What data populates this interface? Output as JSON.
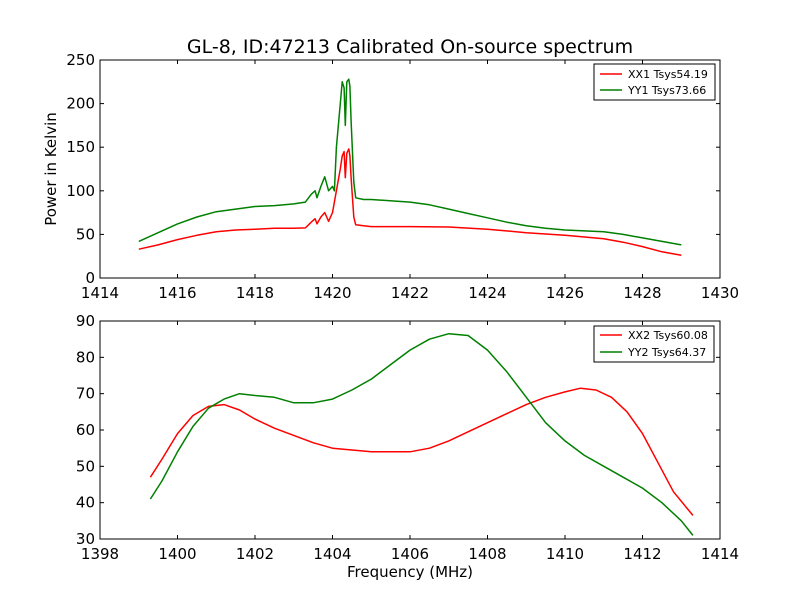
{
  "figure": {
    "title": "GL-8, ID:47213 Calibrated On-source spectrum",
    "xlabel": "Frequency (MHz)"
  },
  "chart_data": [
    {
      "type": "line",
      "title": "GL-8, ID:47213 Calibrated On-source spectrum",
      "ylabel": "Power in Kelvin",
      "xlim": [
        1414,
        1430
      ],
      "ylim": [
        0,
        250
      ],
      "xticks": [
        1414,
        1416,
        1418,
        1420,
        1422,
        1424,
        1426,
        1428,
        1430
      ],
      "yticks": [
        0,
        50,
        100,
        150,
        200,
        250
      ],
      "grid": false,
      "legend": "top-right",
      "series": [
        {
          "name": "XX1 Tsys54.19",
          "color": "#ff0000",
          "points": [
            [
              1415,
              33
            ],
            [
              1415.5,
              38
            ],
            [
              1416,
              44
            ],
            [
              1416.5,
              49
            ],
            [
              1417,
              53
            ],
            [
              1417.5,
              55
            ],
            [
              1418,
              56
            ],
            [
              1418.5,
              57
            ],
            [
              1419,
              57
            ],
            [
              1419.3,
              57.5
            ],
            [
              1419.45,
              64
            ],
            [
              1419.55,
              68
            ],
            [
              1419.6,
              62
            ],
            [
              1419.7,
              70
            ],
            [
              1419.8,
              75
            ],
            [
              1419.85,
              70
            ],
            [
              1419.9,
              65
            ],
            [
              1420.0,
              75
            ],
            [
              1420.1,
              100
            ],
            [
              1420.2,
              125
            ],
            [
              1420.25,
              140
            ],
            [
              1420.3,
              145
            ],
            [
              1420.33,
              115
            ],
            [
              1420.37,
              143
            ],
            [
              1420.42,
              148
            ],
            [
              1420.45,
              140
            ],
            [
              1420.48,
              115
            ],
            [
              1420.55,
              70
            ],
            [
              1420.6,
              61
            ],
            [
              1420.8,
              60
            ],
            [
              1421,
              59
            ],
            [
              1422,
              59
            ],
            [
              1423,
              58.5
            ],
            [
              1424,
              56
            ],
            [
              1425,
              52
            ],
            [
              1426,
              49
            ],
            [
              1427,
              45
            ],
            [
              1427.5,
              41
            ],
            [
              1428,
              36
            ],
            [
              1428.5,
              30
            ],
            [
              1429,
              26
            ]
          ]
        },
        {
          "name": "YY1 Tsys73.66",
          "color": "#008000",
          "points": [
            [
              1415,
              42
            ],
            [
              1415.5,
              52
            ],
            [
              1416,
              62
            ],
            [
              1416.5,
              70
            ],
            [
              1417,
              76
            ],
            [
              1417.5,
              79
            ],
            [
              1418,
              82
            ],
            [
              1418.5,
              83
            ],
            [
              1419,
              85
            ],
            [
              1419.3,
              87
            ],
            [
              1419.45,
              96
            ],
            [
              1419.55,
              100
            ],
            [
              1419.6,
              92
            ],
            [
              1419.7,
              105
            ],
            [
              1419.8,
              116
            ],
            [
              1419.85,
              108
            ],
            [
              1419.9,
              100
            ],
            [
              1420.0,
              105
            ],
            [
              1420.05,
              100
            ],
            [
              1420.1,
              150
            ],
            [
              1420.2,
              200
            ],
            [
              1420.25,
              225
            ],
            [
              1420.3,
              218
            ],
            [
              1420.33,
              175
            ],
            [
              1420.37,
              225
            ],
            [
              1420.42,
              228
            ],
            [
              1420.45,
              220
            ],
            [
              1420.48,
              180
            ],
            [
              1420.55,
              110
            ],
            [
              1420.6,
              92
            ],
            [
              1420.8,
              90
            ],
            [
              1421,
              90
            ],
            [
              1422,
              87
            ],
            [
              1422.5,
              84
            ],
            [
              1423,
              79
            ],
            [
              1423.5,
              74
            ],
            [
              1424,
              69
            ],
            [
              1424.5,
              64
            ],
            [
              1425,
              60
            ],
            [
              1425.5,
              57
            ],
            [
              1426,
              55
            ],
            [
              1427,
              53
            ],
            [
              1427.5,
              50
            ],
            [
              1428,
              46
            ],
            [
              1428.5,
              42
            ],
            [
              1429,
              38
            ]
          ]
        }
      ]
    },
    {
      "type": "line",
      "title": "",
      "ylabel": "",
      "xlabel": "Frequency (MHz)",
      "xlim": [
        1398,
        1414
      ],
      "ylim": [
        30,
        90
      ],
      "xticks": [
        1398,
        1400,
        1402,
        1404,
        1406,
        1408,
        1410,
        1412,
        1414
      ],
      "yticks": [
        30,
        40,
        50,
        60,
        70,
        80,
        90
      ],
      "grid": false,
      "legend": "top-right",
      "series": [
        {
          "name": "XX2 Tsys60.08",
          "color": "#ff0000",
          "points": [
            [
              1399.3,
              47
            ],
            [
              1399.6,
              52
            ],
            [
              1400,
              59
            ],
            [
              1400.4,
              64
            ],
            [
              1400.8,
              66.5
            ],
            [
              1401.2,
              67
            ],
            [
              1401.6,
              65.5
            ],
            [
              1402,
              63
            ],
            [
              1402.5,
              60.5
            ],
            [
              1403,
              58.5
            ],
            [
              1403.5,
              56.5
            ],
            [
              1404,
              55
            ],
            [
              1404.5,
              54.5
            ],
            [
              1405,
              54
            ],
            [
              1405.5,
              54
            ],
            [
              1406,
              54
            ],
            [
              1406.5,
              55
            ],
            [
              1407,
              57
            ],
            [
              1407.5,
              59.5
            ],
            [
              1408,
              62
            ],
            [
              1408.5,
              64.5
            ],
            [
              1409,
              67
            ],
            [
              1409.5,
              69
            ],
            [
              1410,
              70.5
            ],
            [
              1410.4,
              71.5
            ],
            [
              1410.8,
              71
            ],
            [
              1411.2,
              69
            ],
            [
              1411.6,
              65
            ],
            [
              1412,
              59
            ],
            [
              1412.4,
              51
            ],
            [
              1412.8,
              43
            ],
            [
              1413.3,
              36.5
            ]
          ]
        },
        {
          "name": "YY2 Tsys64.37",
          "color": "#008000",
          "points": [
            [
              1399.3,
              41
            ],
            [
              1399.6,
              46
            ],
            [
              1400,
              54
            ],
            [
              1400.4,
              61
            ],
            [
              1400.8,
              66
            ],
            [
              1401.2,
              68.5
            ],
            [
              1401.6,
              70
            ],
            [
              1402,
              69.5
            ],
            [
              1402.5,
              69
            ],
            [
              1403,
              67.5
            ],
            [
              1403.5,
              67.5
            ],
            [
              1404,
              68.5
            ],
            [
              1404.5,
              71
            ],
            [
              1405,
              74
            ],
            [
              1405.5,
              78
            ],
            [
              1406,
              82
            ],
            [
              1406.5,
              85
            ],
            [
              1407,
              86.5
            ],
            [
              1407.5,
              86
            ],
            [
              1408,
              82
            ],
            [
              1408.5,
              76
            ],
            [
              1409,
              69
            ],
            [
              1409.5,
              62
            ],
            [
              1410,
              57
            ],
            [
              1410.5,
              53
            ],
            [
              1411,
              50
            ],
            [
              1411.5,
              47
            ],
            [
              1412,
              44
            ],
            [
              1412.5,
              40
            ],
            [
              1413,
              35
            ],
            [
              1413.3,
              31
            ]
          ]
        }
      ]
    }
  ]
}
